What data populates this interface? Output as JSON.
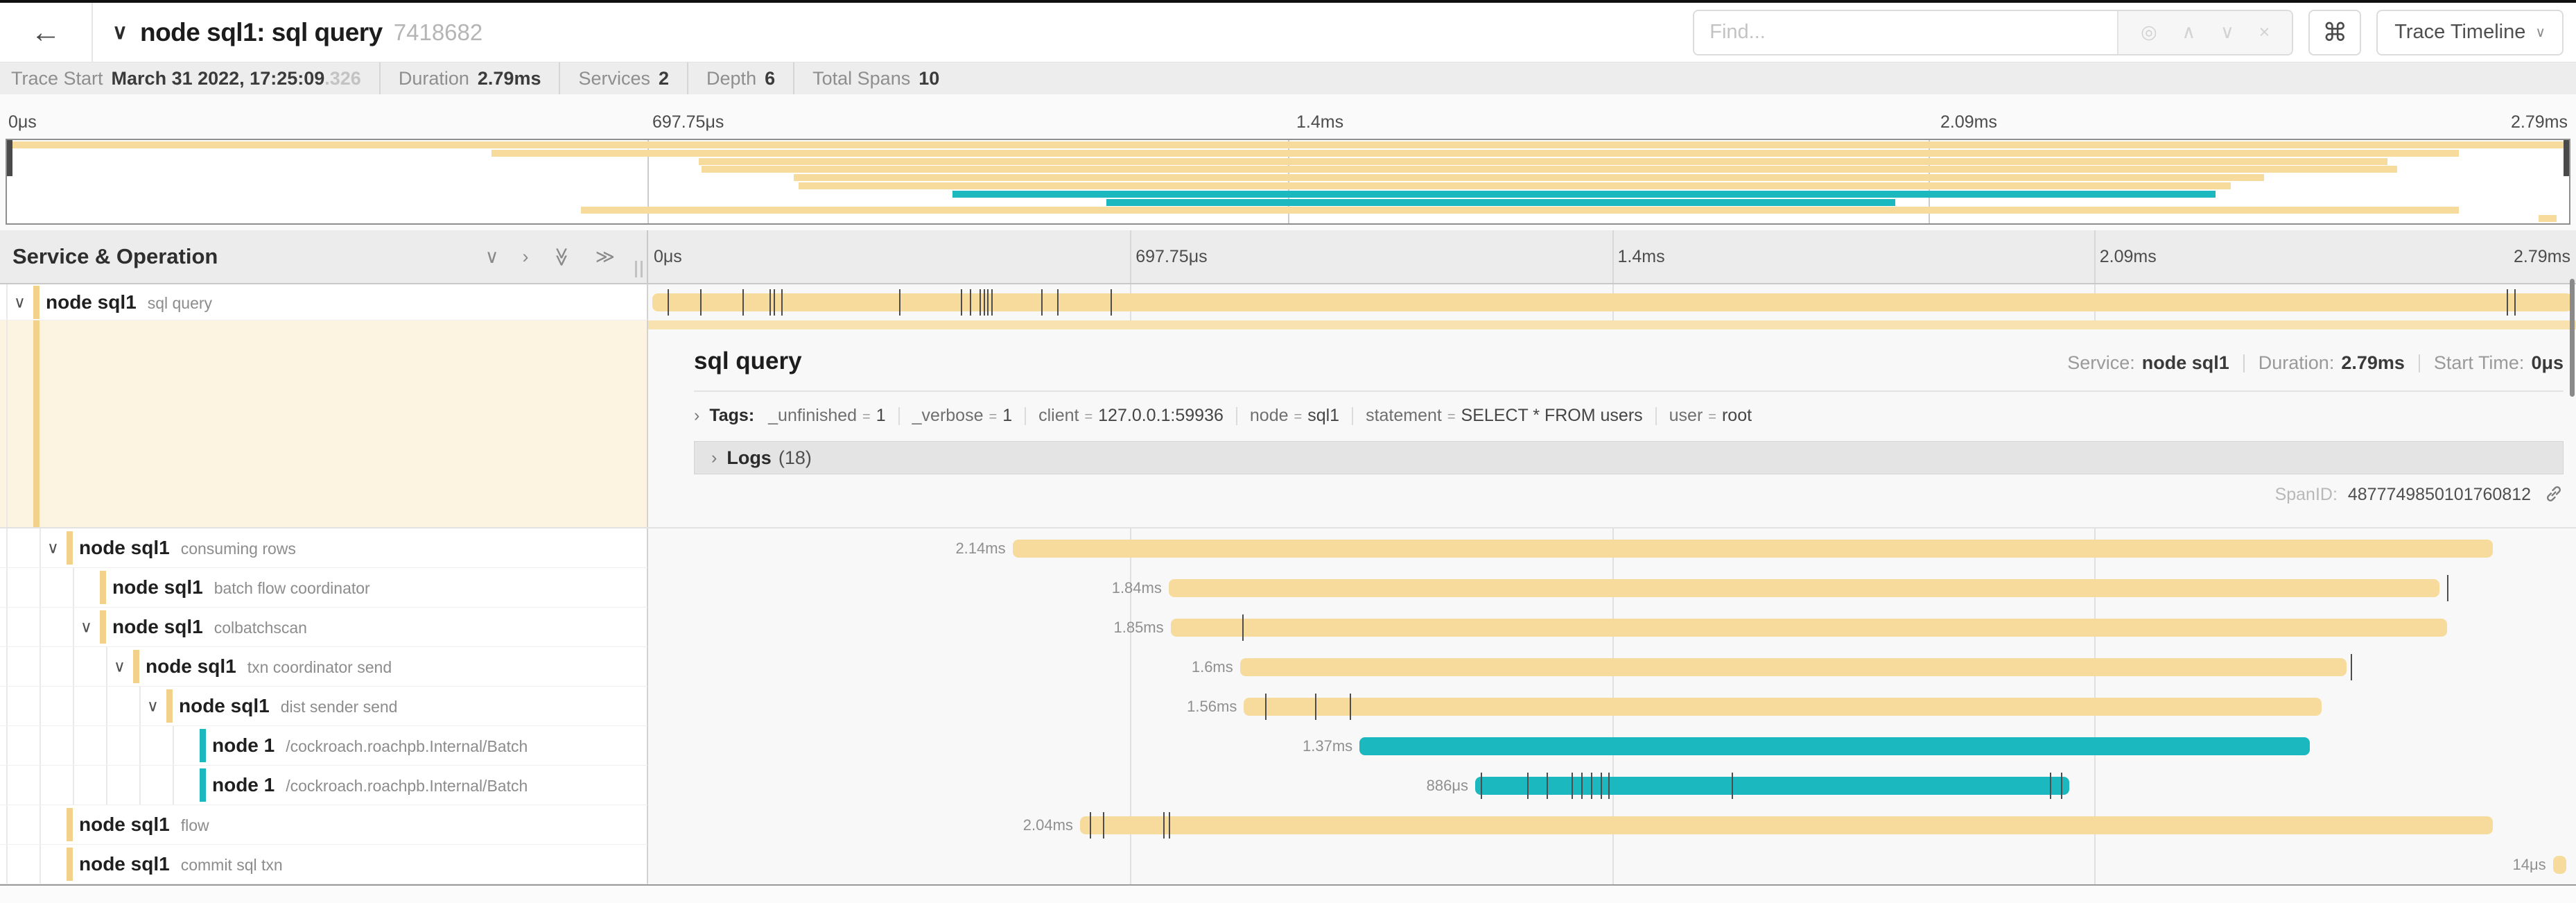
{
  "colors": {
    "tan": "#F6DB9C",
    "teal": "#1BB9BF",
    "tree_tan": "#F2D28A",
    "tree_teal": "#1BB9BF",
    "accent_tan": "#F8E3B0"
  },
  "header": {
    "back_icon": "←",
    "collapse_icon": "∨",
    "title": "node sql1: sql query",
    "trace_id": "7418682",
    "find_placeholder": "Find...",
    "find_icons": {
      "locate": "◎",
      "prev": "∧",
      "next": "∨",
      "clear": "×"
    },
    "shortcut_icon": "⌘",
    "view_selector": "Trace Timeline",
    "view_selector_chevron": "∨"
  },
  "summary": {
    "items": [
      {
        "label": "Trace Start",
        "value": "March 31 2022, 17:25:09",
        "suffix": ".326"
      },
      {
        "label": "Duration",
        "value": "2.79ms"
      },
      {
        "label": "Services",
        "value": "2"
      },
      {
        "label": "Depth",
        "value": "6"
      },
      {
        "label": "Total Spans",
        "value": "10"
      }
    ]
  },
  "timeline": {
    "axis_ticks": [
      "0μs",
      "697.75μs",
      "1.4ms",
      "2.09ms",
      "2.79ms"
    ]
  },
  "list": {
    "header_title": "Service & Operation",
    "collapse_one_icon": "∨",
    "expand_one_icon": "›",
    "collapse_all_icon": "≫",
    "expand_all_icon": "≫"
  },
  "detail": {
    "title": "sql query",
    "service_label": "Service:",
    "service": "node sql1",
    "duration_label": "Duration:",
    "duration": "2.79ms",
    "start_label": "Start Time:",
    "start": "0μs",
    "tags_chevron": "›",
    "tags_label": "Tags:",
    "tags": [
      {
        "key": "_unfinished",
        "value": "1"
      },
      {
        "key": "_verbose",
        "value": "1"
      },
      {
        "key": "client",
        "value": "127.0.0.1:59936"
      },
      {
        "key": "node",
        "value": "sql1"
      },
      {
        "key": "statement",
        "value": "SELECT * FROM users"
      },
      {
        "key": "user",
        "value": "root"
      }
    ],
    "logs_chevron": "›",
    "logs_label": "Logs",
    "logs_count": "(18)",
    "span_id_label": "SpanID:",
    "span_id": "4877749850101760812"
  },
  "spans": [
    {
      "service": "node sql1",
      "operation": "sql query",
      "color": "tan",
      "depth": 0,
      "chevron": true,
      "selected": true,
      "start": 0.2,
      "end": 99.8,
      "duration_label": "",
      "ticks": [
        1.0,
        2.7,
        4.9,
        6.3,
        6.5,
        6.9,
        13.0,
        16.2,
        16.7,
        17.2,
        17.4,
        17.6,
        17.8,
        20.4,
        21.2,
        24.0,
        96.4,
        96.8
      ]
    },
    {
      "service": "node sql1",
      "operation": "consuming rows",
      "color": "tan",
      "depth": 1,
      "chevron": true,
      "start": 18.9,
      "end": 95.7,
      "duration_label": "2.14ms",
      "ticks": []
    },
    {
      "service": "node sql1",
      "operation": "batch flow coordinator",
      "color": "tan",
      "depth": 2,
      "chevron": false,
      "start": 27.0,
      "end": 92.9,
      "duration_label": "1.84ms",
      "ticks": [
        93.3
      ]
    },
    {
      "service": "node sql1",
      "operation": "colbatchscan",
      "color": "tan",
      "depth": 2,
      "chevron": true,
      "start": 27.1,
      "end": 93.3,
      "duration_label": "1.85ms",
      "ticks": [
        30.8
      ]
    },
    {
      "service": "node sql1",
      "operation": "txn coordinator send",
      "color": "tan",
      "depth": 3,
      "chevron": true,
      "start": 30.7,
      "end": 88.1,
      "duration_label": "1.6ms",
      "ticks": [
        88.3
      ]
    },
    {
      "service": "node sql1",
      "operation": "dist sender send",
      "color": "tan",
      "depth": 4,
      "chevron": true,
      "start": 30.9,
      "end": 86.8,
      "duration_label": "1.56ms",
      "ticks": [
        32.0,
        34.6,
        36.4
      ]
    },
    {
      "service": "node 1",
      "operation": "/cockroach.roachpb.Internal/Batch",
      "color": "teal",
      "depth": 5,
      "chevron": false,
      "start": 36.9,
      "end": 86.2,
      "duration_label": "1.37ms",
      "ticks": []
    },
    {
      "service": "node 1",
      "operation": "/cockroach.roachpb.Internal/Batch",
      "color": "teal",
      "depth": 5,
      "chevron": false,
      "start": 42.9,
      "end": 73.7,
      "duration_label": "886μs",
      "ticks": [
        43.2,
        45.6,
        46.6,
        47.9,
        48.4,
        48.9,
        49.4,
        49.8,
        56.2,
        72.7,
        73.3
      ]
    },
    {
      "service": "node sql1",
      "operation": "flow",
      "color": "tan",
      "depth": 1,
      "chevron": false,
      "start": 22.4,
      "end": 95.7,
      "duration_label": "2.04ms",
      "ticks": [
        22.9,
        23.6,
        26.7,
        27.0
      ]
    },
    {
      "service": "node sql1",
      "operation": "commit sql txn",
      "color": "tan",
      "depth": 1,
      "chevron": false,
      "start": 98.8,
      "end": 99.5,
      "duration_label": "14μs",
      "ticks": []
    }
  ]
}
